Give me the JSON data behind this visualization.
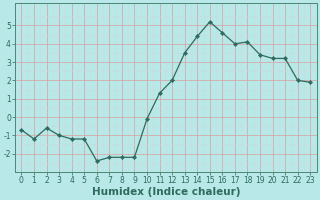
{
  "x": [
    0,
    1,
    2,
    3,
    4,
    5,
    6,
    7,
    8,
    9,
    10,
    11,
    12,
    13,
    14,
    15,
    16,
    17,
    18,
    19,
    20,
    21,
    22,
    23
  ],
  "y": [
    -0.7,
    -1.2,
    -0.6,
    -1.0,
    -1.2,
    -1.2,
    -2.4,
    -2.2,
    -2.2,
    -2.2,
    -0.1,
    1.3,
    2.0,
    3.5,
    4.4,
    5.2,
    4.6,
    4.0,
    4.1,
    3.4,
    3.2,
    3.2,
    2.0,
    1.9
  ],
  "line_color": "#2e6b5e",
  "marker": "D",
  "marker_size": 2.2,
  "bg_color": "#b8e8e8",
  "grid_color_major": "#d8a0a0",
  "grid_color_minor": "#c8dcd8",
  "xlabel": "Humidex (Indice chaleur)",
  "xlim": [
    -0.5,
    23.5
  ],
  "ylim": [
    -3.0,
    6.2
  ],
  "yticks": [
    -2,
    -1,
    0,
    1,
    2,
    3,
    4,
    5
  ],
  "xticks": [
    0,
    1,
    2,
    3,
    4,
    5,
    6,
    7,
    8,
    9,
    10,
    11,
    12,
    13,
    14,
    15,
    16,
    17,
    18,
    19,
    20,
    21,
    22,
    23
  ],
  "tick_fontsize": 5.5,
  "label_fontsize": 7.5,
  "label_color": "#2e6b5e",
  "tick_color": "#2e6b5e",
  "spine_color": "#4a8878"
}
